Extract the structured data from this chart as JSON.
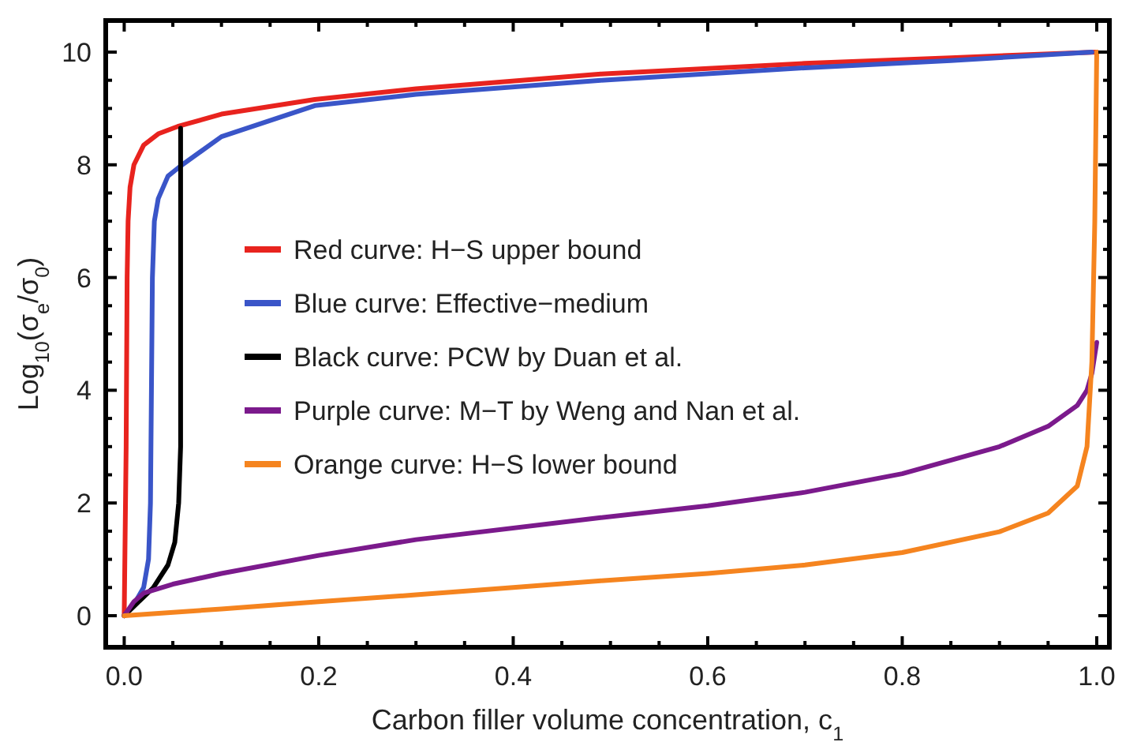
{
  "chart_data": {
    "type": "line",
    "xlabel": "Carbon filler volume concentration, c$_{1}$",
    "ylabel": "Log$_{10}$(σ$_{e}$/σ$_{0}$)",
    "xlim": [
      -0.019,
      1.013
    ],
    "ylim": [
      -0.56,
      10.56
    ],
    "xticks": [
      {
        "value": 0,
        "label": "0.0"
      },
      {
        "value": 0.05,
        "label": null
      },
      {
        "value": 0.1,
        "label": null
      },
      {
        "value": 0.15,
        "label": null
      },
      {
        "value": 0.2,
        "label": "0.2"
      },
      {
        "value": 0.25,
        "label": null
      },
      {
        "value": 0.3,
        "label": null
      },
      {
        "value": 0.35,
        "label": null
      },
      {
        "value": 0.4,
        "label": "0.4"
      },
      {
        "value": 0.45,
        "label": null
      },
      {
        "value": 0.5,
        "label": null
      },
      {
        "value": 0.55,
        "label": null
      },
      {
        "value": 0.6,
        "label": "0.6"
      },
      {
        "value": 0.65,
        "label": null
      },
      {
        "value": 0.7,
        "label": null
      },
      {
        "value": 0.75,
        "label": null
      },
      {
        "value": 0.8,
        "label": "0.8"
      },
      {
        "value": 0.85,
        "label": null
      },
      {
        "value": 0.9,
        "label": null
      },
      {
        "value": 0.95,
        "label": null
      },
      {
        "value": 1,
        "label": "1.0"
      }
    ],
    "yticks": [
      0,
      {
        "value": 0.5,
        "label": null
      },
      {
        "value": 1,
        "label": null
      },
      {
        "value": 1.5,
        "label": null
      },
      2,
      {
        "value": 2.5,
        "label": null
      },
      {
        "value": 3,
        "label": null
      },
      {
        "value": 3.5,
        "label": null
      },
      4,
      {
        "value": 4.5,
        "label": null
      },
      {
        "value": 5,
        "label": null
      },
      {
        "value": 5.5,
        "label": null
      },
      6,
      {
        "value": 6.5,
        "label": null
      },
      {
        "value": 7,
        "label": null
      },
      {
        "value": 7.5,
        "label": null
      },
      8,
      {
        "value": 8.5,
        "label": null
      },
      {
        "value": 9,
        "label": null
      },
      {
        "value": 9.5,
        "label": null
      },
      10
    ],
    "grid": false,
    "legend": "center left",
    "line_style": "solid",
    "marker": "none",
    "series": [
      {
        "name": "Red curve: H−S upper bound",
        "color": "#e8231e",
        "x": [
          0,
          0.002,
          0.003,
          0.004,
          0.006,
          0.01,
          0.02,
          0.035,
          0.055,
          0.1,
          0.196,
          0.3,
          0.49,
          0.7,
          0.85,
          1
        ],
        "values": [
          0,
          3,
          6,
          7,
          7.6,
          8.0,
          8.35,
          8.55,
          8.68,
          8.9,
          9.16,
          9.35,
          9.61,
          9.8,
          9.9,
          10
        ]
      },
      {
        "name": "Blue curve: Effective−medium",
        "color": "#3a55c8",
        "x": [
          0,
          0.01,
          0.02,
          0.025,
          0.027,
          0.028,
          0.029,
          0.031,
          0.035,
          0.045,
          0.058,
          0.1,
          0.196,
          0.3,
          0.49,
          0.7,
          0.85,
          0.995
        ],
        "values": [
          0,
          0.2,
          0.5,
          1,
          2,
          4,
          6,
          7,
          7.4,
          7.8,
          7.98,
          8.5,
          9.05,
          9.25,
          9.5,
          9.72,
          9.85,
          10
        ]
      },
      {
        "name": "Black curve: PCW by Duan et al.",
        "color": "#000000",
        "x": [
          0,
          0.015,
          0.03,
          0.045,
          0.052,
          0.056,
          0.058,
          0.058
        ],
        "values": [
          0,
          0.25,
          0.5,
          0.9,
          1.3,
          2,
          3,
          8.65
        ]
      },
      {
        "name": "Purple curve: M−T by Weng and Nan et al.",
        "color": "#7b1a8c",
        "x": [
          0,
          0.01,
          0.02,
          0.05,
          0.1,
          0.2,
          0.3,
          0.49,
          0.6,
          0.7,
          0.8,
          0.9,
          0.95,
          0.98,
          0.99,
          0.995,
          1
        ],
        "values": [
          0,
          0.25,
          0.4,
          0.56,
          0.75,
          1.07,
          1.35,
          1.74,
          1.95,
          2.19,
          2.52,
          3.0,
          3.36,
          3.73,
          4.0,
          4.3,
          4.85
        ]
      },
      {
        "name": "Orange curve: H−S lower bound",
        "color": "#f5841f",
        "x": [
          0,
          0.1,
          0.2,
          0.3,
          0.4,
          0.49,
          0.6,
          0.7,
          0.8,
          0.9,
          0.95,
          0.98,
          0.99,
          0.995,
          0.998,
          1
        ],
        "values": [
          0,
          0.12,
          0.25,
          0.37,
          0.5,
          0.62,
          0.75,
          0.9,
          1.12,
          1.49,
          1.82,
          2.3,
          3.0,
          4.5,
          7,
          10
        ]
      }
    ]
  }
}
